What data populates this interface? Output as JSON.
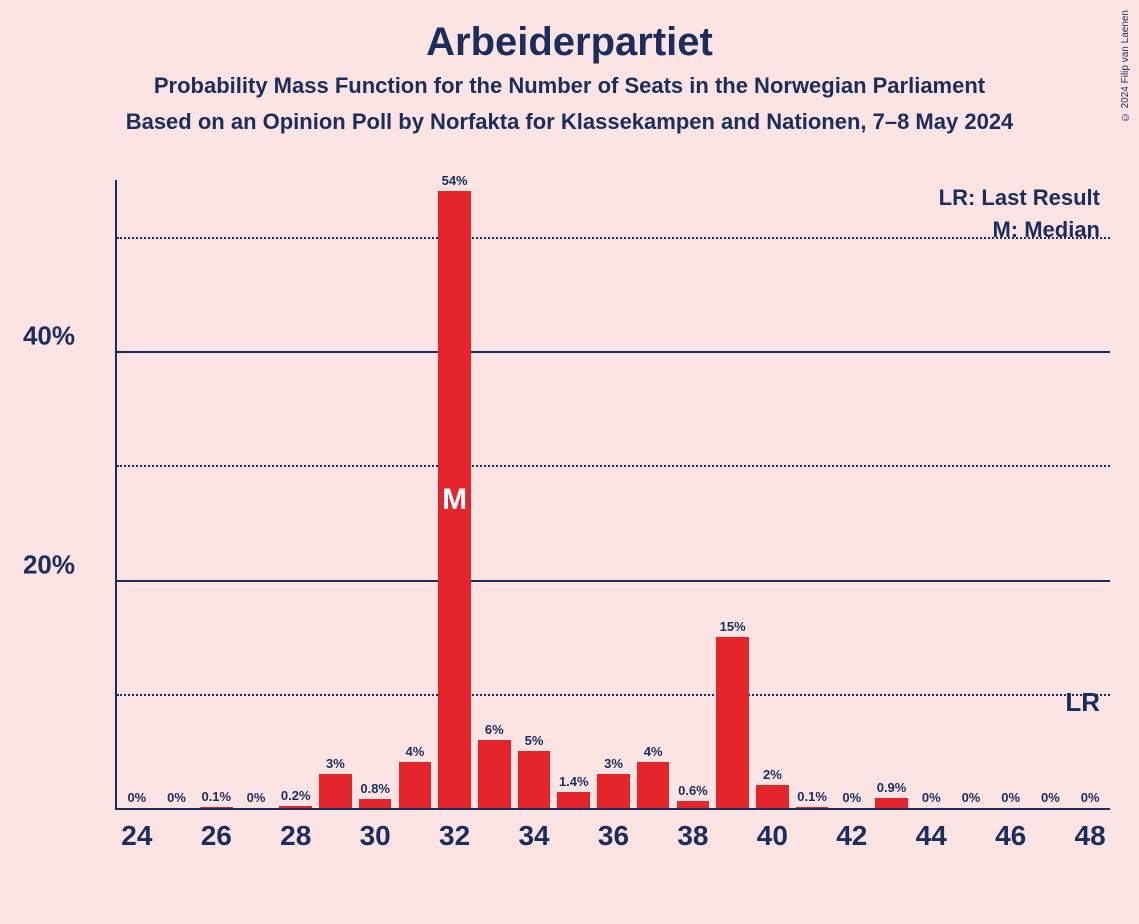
{
  "chart": {
    "type": "bar",
    "title": "Arbeiderpartiet",
    "subtitle": "Probability Mass Function for the Number of Seats in the Norwegian Parliament",
    "source_line": "Based on an Opinion Poll by Norfakta for Klassekampen and Nationen, 7–8 May 2024",
    "copyright": "© 2024 Filip van Laenen",
    "legend_lr": "LR: Last Result",
    "legend_m": "M: Median",
    "lr_marker": "LR",
    "median_marker": "M",
    "background_color": "#fce4e4",
    "text_color": "#1a2d5c",
    "bar_color": "#e4252b",
    "grid_color": "#1a2d5c",
    "title_fontsize": 40,
    "subtitle_fontsize": 22,
    "axis_label_fontsize": 28,
    "bar_label_fontsize": 13,
    "y_axis": {
      "min": 0,
      "max": 55,
      "major_ticks": [
        20,
        40
      ],
      "minor_ticks": [
        10,
        30,
        50
      ],
      "label_suffix": "%"
    },
    "x_axis": {
      "min": 24,
      "max": 48,
      "tick_step": 2,
      "ticks": [
        24,
        26,
        28,
        30,
        32,
        34,
        36,
        38,
        40,
        42,
        44,
        46,
        48
      ]
    },
    "lr_position_y": 7.5,
    "bars": [
      {
        "x": 24,
        "value": 0,
        "label": "0%"
      },
      {
        "x": 25,
        "value": 0,
        "label": "0%"
      },
      {
        "x": 26,
        "value": 0.1,
        "label": "0.1%"
      },
      {
        "x": 27,
        "value": 0,
        "label": "0%"
      },
      {
        "x": 28,
        "value": 0.2,
        "label": "0.2%"
      },
      {
        "x": 29,
        "value": 3,
        "label": "3%"
      },
      {
        "x": 30,
        "value": 0.8,
        "label": "0.8%"
      },
      {
        "x": 31,
        "value": 4,
        "label": "4%"
      },
      {
        "x": 32,
        "value": 54,
        "label": "54%",
        "median": true
      },
      {
        "x": 33,
        "value": 6,
        "label": "6%"
      },
      {
        "x": 34,
        "value": 5,
        "label": "5%"
      },
      {
        "x": 35,
        "value": 1.4,
        "label": "1.4%"
      },
      {
        "x": 36,
        "value": 3,
        "label": "3%"
      },
      {
        "x": 37,
        "value": 4,
        "label": "4%"
      },
      {
        "x": 38,
        "value": 0.6,
        "label": "0.6%"
      },
      {
        "x": 39,
        "value": 15,
        "label": "15%"
      },
      {
        "x": 40,
        "value": 2,
        "label": "2%"
      },
      {
        "x": 41,
        "value": 0.1,
        "label": "0.1%"
      },
      {
        "x": 42,
        "value": 0,
        "label": "0%"
      },
      {
        "x": 43,
        "value": 0.9,
        "label": "0.9%"
      },
      {
        "x": 44,
        "value": 0,
        "label": "0%"
      },
      {
        "x": 45,
        "value": 0,
        "label": "0%"
      },
      {
        "x": 46,
        "value": 0,
        "label": "0%"
      },
      {
        "x": 47,
        "value": 0,
        "label": "0%"
      },
      {
        "x": 48,
        "value": 0,
        "label": "0%"
      }
    ],
    "bar_width_ratio": 0.82
  }
}
